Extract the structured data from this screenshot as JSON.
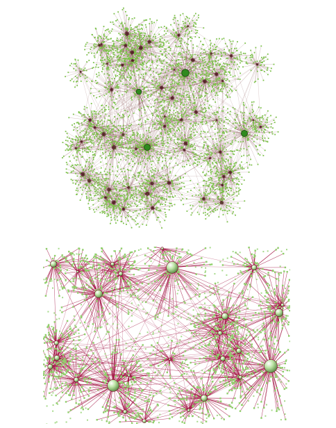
{
  "figure": {
    "overview": {
      "hub_color": "#2f8a1e",
      "leaf_color": "#7cc24a",
      "edge_color": "#6b2a2a",
      "background": "#ffffff"
    },
    "zoomed": {
      "hub_color": "#bfe6a8",
      "leaf_color": "#8fd06a",
      "edge_color": "#a01040",
      "background": "#ffffff"
    }
  }
}
